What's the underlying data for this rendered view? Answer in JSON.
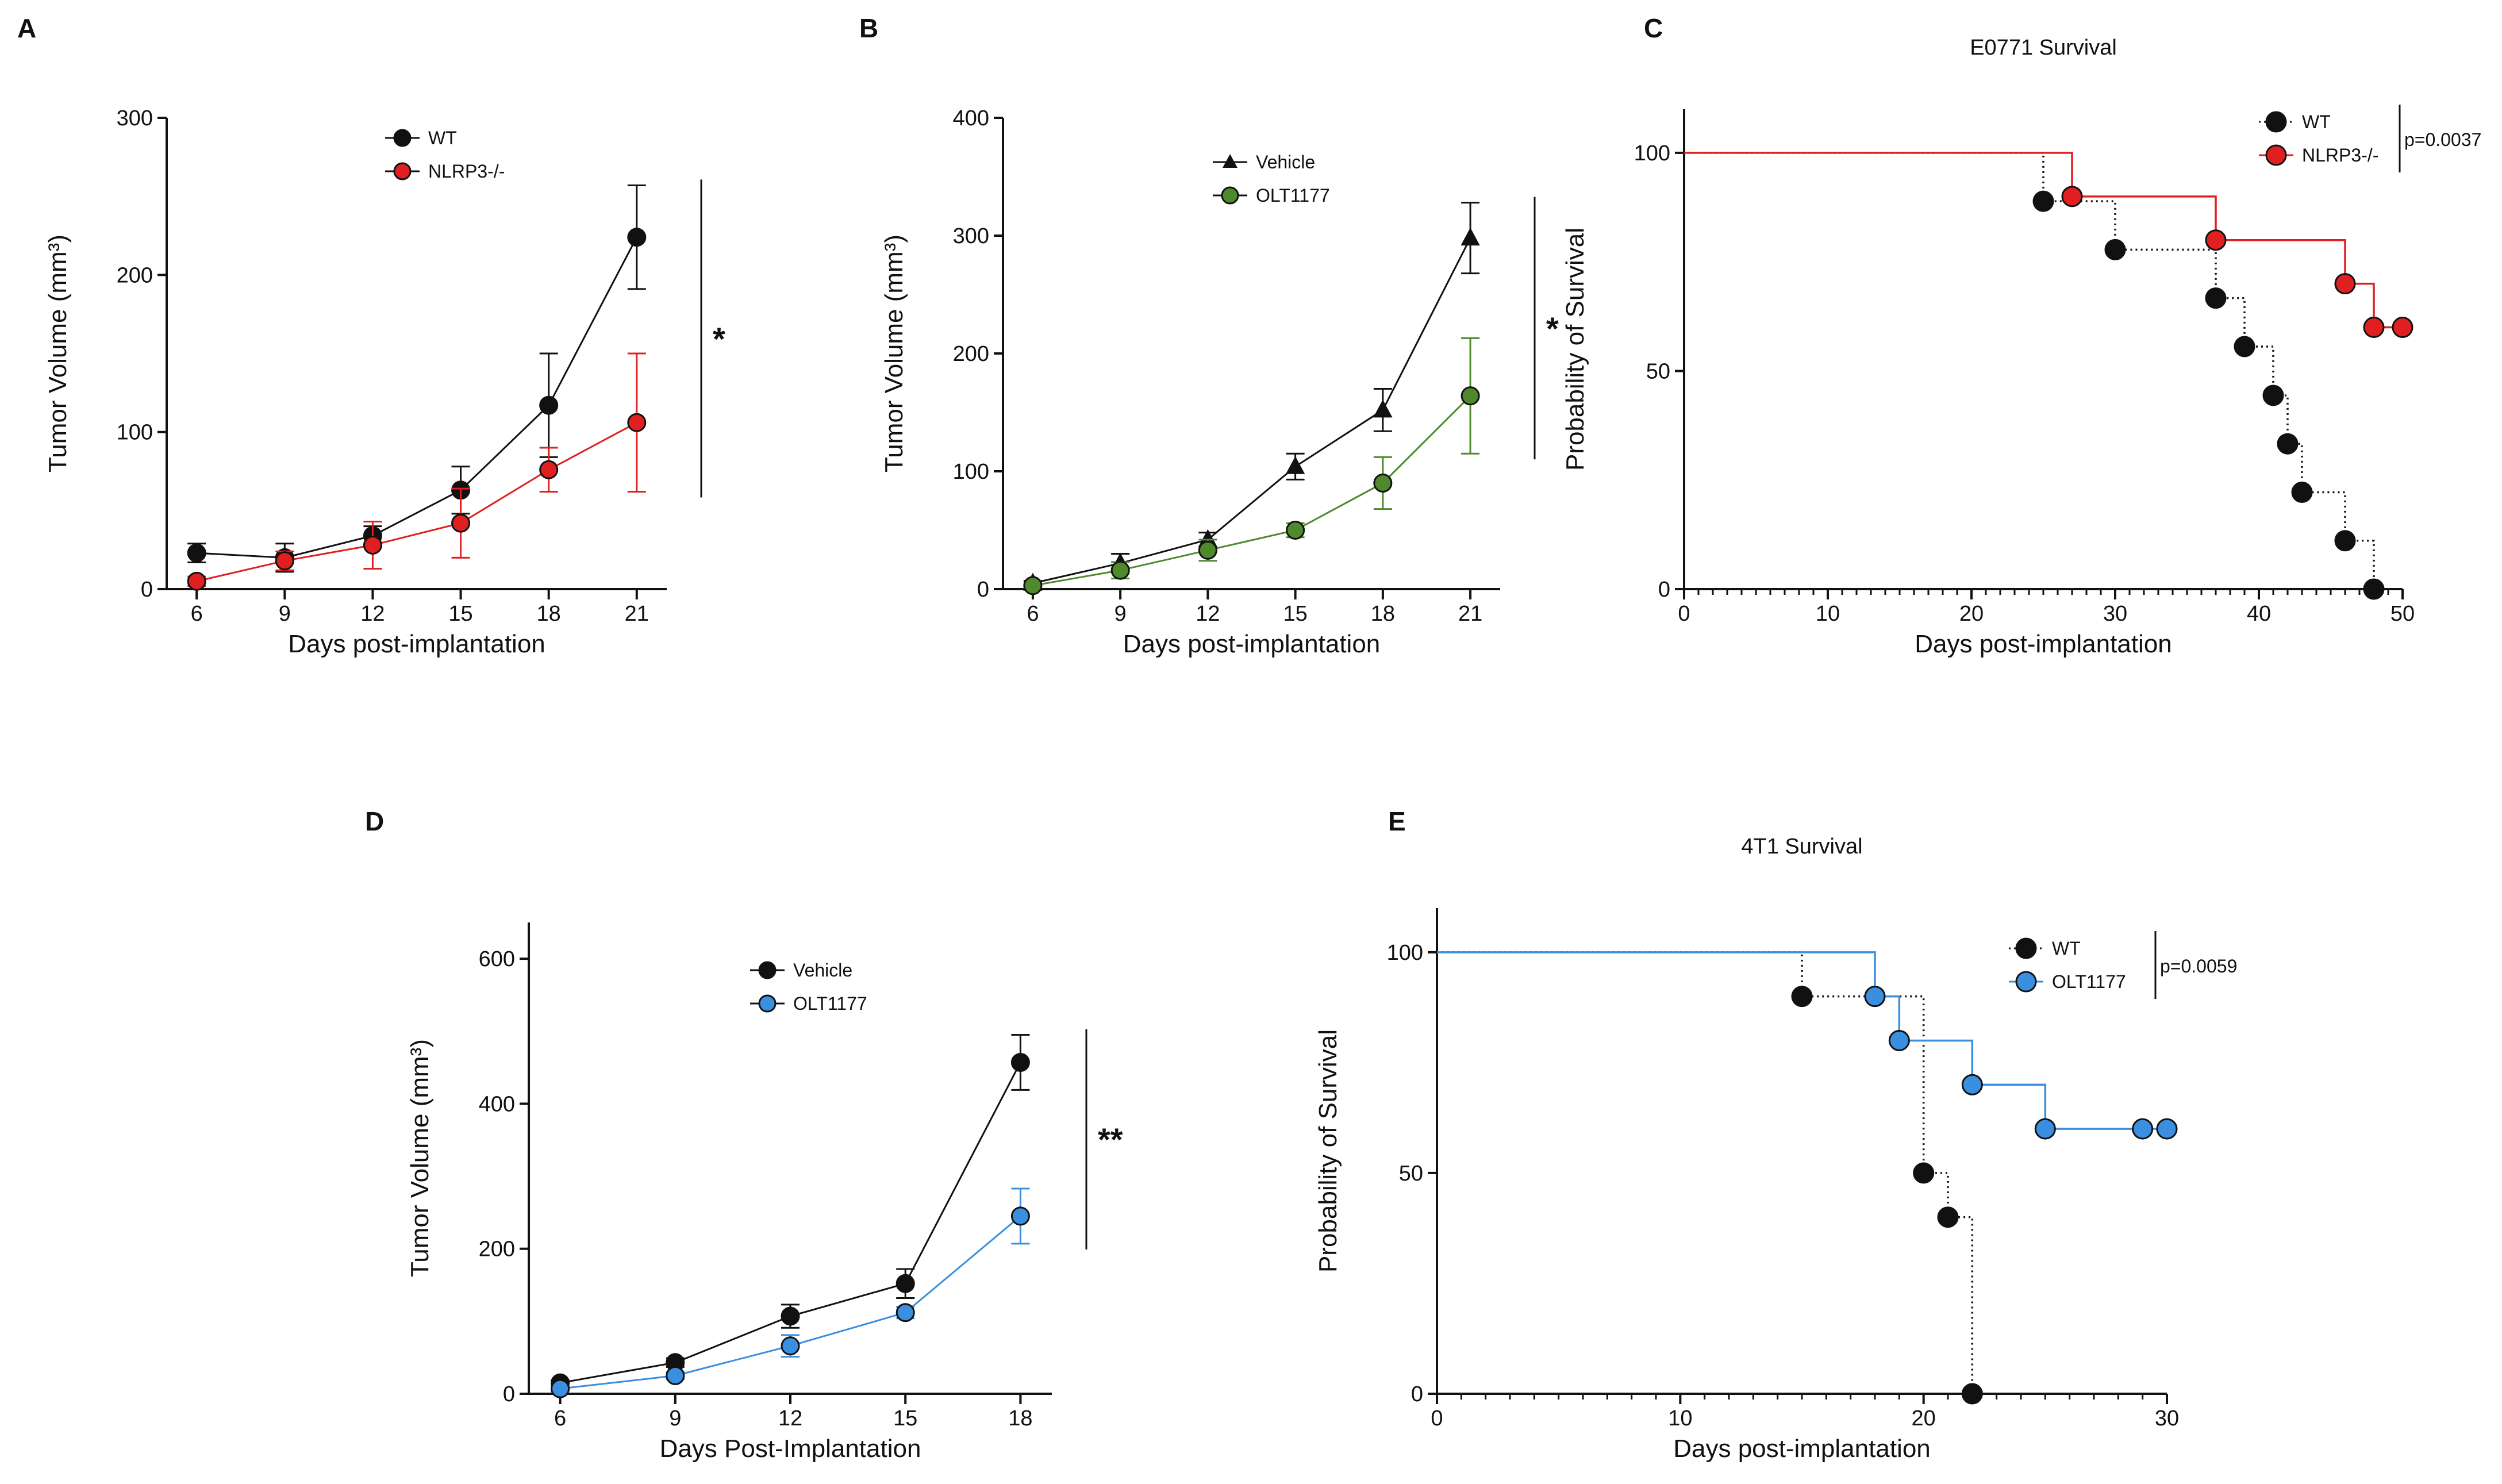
{
  "chart_data": [
    {
      "panel": "A",
      "type": "line",
      "title": "",
      "xlabel": "Days post-implantation",
      "ylabel": "Tumor Volume (mm³)",
      "x": [
        6,
        9,
        12,
        15,
        18,
        21
      ],
      "xlim": [
        6,
        21
      ],
      "ylim": [
        0,
        300
      ],
      "yticks": [
        0,
        100,
        200,
        300
      ],
      "xticks": [
        6,
        9,
        12,
        15,
        18,
        21
      ],
      "significance": "*",
      "series": [
        {
          "name": "WT",
          "color": "#111111",
          "marker": "circle",
          "values": [
            23,
            20,
            34,
            63,
            117,
            224
          ],
          "errors": [
            6,
            9,
            6,
            15,
            33,
            33
          ]
        },
        {
          "name": "NLRP3-/-",
          "color": "#e02020",
          "marker": "circle",
          "values": [
            5,
            18,
            28,
            42,
            76,
            106
          ],
          "errors": [
            3,
            6,
            15,
            22,
            14,
            44
          ]
        }
      ]
    },
    {
      "panel": "B",
      "type": "line",
      "title": "",
      "xlabel": "Days post-implantation",
      "ylabel": "Tumor Volume (mm³)",
      "x": [
        6,
        9,
        12,
        15,
        18,
        21
      ],
      "xlim": [
        6,
        21
      ],
      "ylim": [
        0,
        400
      ],
      "yticks": [
        0,
        100,
        200,
        300,
        400
      ],
      "xticks": [
        6,
        9,
        12,
        15,
        18,
        21
      ],
      "significance": "*",
      "series": [
        {
          "name": "Vehicle",
          "color": "#111111",
          "marker": "triangle",
          "values": [
            5,
            22,
            42,
            104,
            152,
            298
          ],
          "errors": [
            2,
            8,
            6,
            11,
            18,
            30
          ]
        },
        {
          "name": "OLT1177",
          "color": "#4e8a2c",
          "marker": "circle",
          "values": [
            3,
            16,
            33,
            50,
            90,
            164
          ],
          "errors": [
            2,
            7,
            9,
            6,
            22,
            49
          ]
        }
      ]
    },
    {
      "panel": "C",
      "type": "line",
      "title": "E0771 Survival",
      "xlabel": "Days post-implantation",
      "ylabel": "Probability of Survival",
      "xlim": [
        0,
        50
      ],
      "ylim": [
        0,
        110
      ],
      "xticks": [
        0,
        10,
        20,
        30,
        40,
        50
      ],
      "yticks": [
        0,
        50,
        100
      ],
      "pvalue": "p=0.0037",
      "series": [
        {
          "name": "WT",
          "color": "#111111",
          "dotted": true,
          "x": [
            0,
            25,
            30,
            37,
            39,
            41,
            42,
            43,
            46,
            48
          ],
          "values": [
            100,
            88.9,
            77.8,
            66.7,
            55.6,
            44.4,
            33.3,
            22.2,
            11.1,
            0
          ],
          "markers_x": [
            25,
            30,
            37,
            39,
            41,
            42,
            43,
            46,
            48
          ],
          "markers_y": [
            88.9,
            77.8,
            66.7,
            55.6,
            44.4,
            33.3,
            22.2,
            11.1,
            0
          ]
        },
        {
          "name": "NLRP3-/-",
          "color": "#e02020",
          "dotted": false,
          "x": [
            0,
            27,
            37,
            46,
            48,
            50
          ],
          "values": [
            100,
            90,
            80,
            70,
            60,
            60
          ],
          "markers_x": [
            27,
            37,
            46,
            48,
            50
          ],
          "markers_y": [
            90,
            80,
            70,
            60,
            60
          ]
        }
      ]
    },
    {
      "panel": "D",
      "type": "line",
      "title": "",
      "xlabel": "Days Post-Implantation",
      "ylabel": "Tumor Volume (mm³)",
      "x": [
        6,
        9,
        12,
        15,
        18
      ],
      "xlim": [
        6,
        18
      ],
      "ylim": [
        0,
        650
      ],
      "yticks": [
        0,
        200,
        400,
        600
      ],
      "xticks": [
        6,
        9,
        12,
        15,
        18
      ],
      "significance": "**",
      "series": [
        {
          "name": "Vehicle",
          "color": "#111111",
          "marker": "circle",
          "values": [
            15,
            43,
            107,
            152,
            457
          ],
          "errors": [
            4,
            6,
            16,
            20,
            38
          ]
        },
        {
          "name": "OLT1177",
          "color": "#3a8fe0",
          "marker": "circle",
          "values": [
            7,
            25,
            66,
            112,
            245
          ],
          "errors": [
            3,
            5,
            15,
            8,
            38
          ]
        }
      ]
    },
    {
      "panel": "E",
      "type": "line",
      "title": "4T1 Survival",
      "xlabel": "Days post-implantation",
      "ylabel": "Probability of Survival",
      "xlim": [
        0,
        30
      ],
      "ylim": [
        0,
        110
      ],
      "xticks": [
        0,
        10,
        20,
        30
      ],
      "yticks": [
        0,
        50,
        100
      ],
      "pvalue": "p=0.0059",
      "series": [
        {
          "name": "WT",
          "color": "#111111",
          "dotted": true,
          "x": [
            0,
            15,
            20,
            21,
            22
          ],
          "values": [
            100,
            90,
            50,
            40,
            0
          ],
          "markers_x": [
            15,
            20,
            21,
            22
          ],
          "markers_y": [
            90,
            50,
            40,
            0
          ]
        },
        {
          "name": "OLT1177",
          "color": "#3a8fe0",
          "dotted": false,
          "x": [
            0,
            18,
            19,
            22,
            25,
            29,
            30
          ],
          "values": [
            100,
            90,
            80,
            70,
            60,
            60,
            60
          ],
          "markers_x": [
            18,
            19,
            22,
            25,
            29,
            30
          ],
          "markers_y": [
            90,
            80,
            70,
            60,
            60,
            60
          ]
        }
      ]
    }
  ]
}
